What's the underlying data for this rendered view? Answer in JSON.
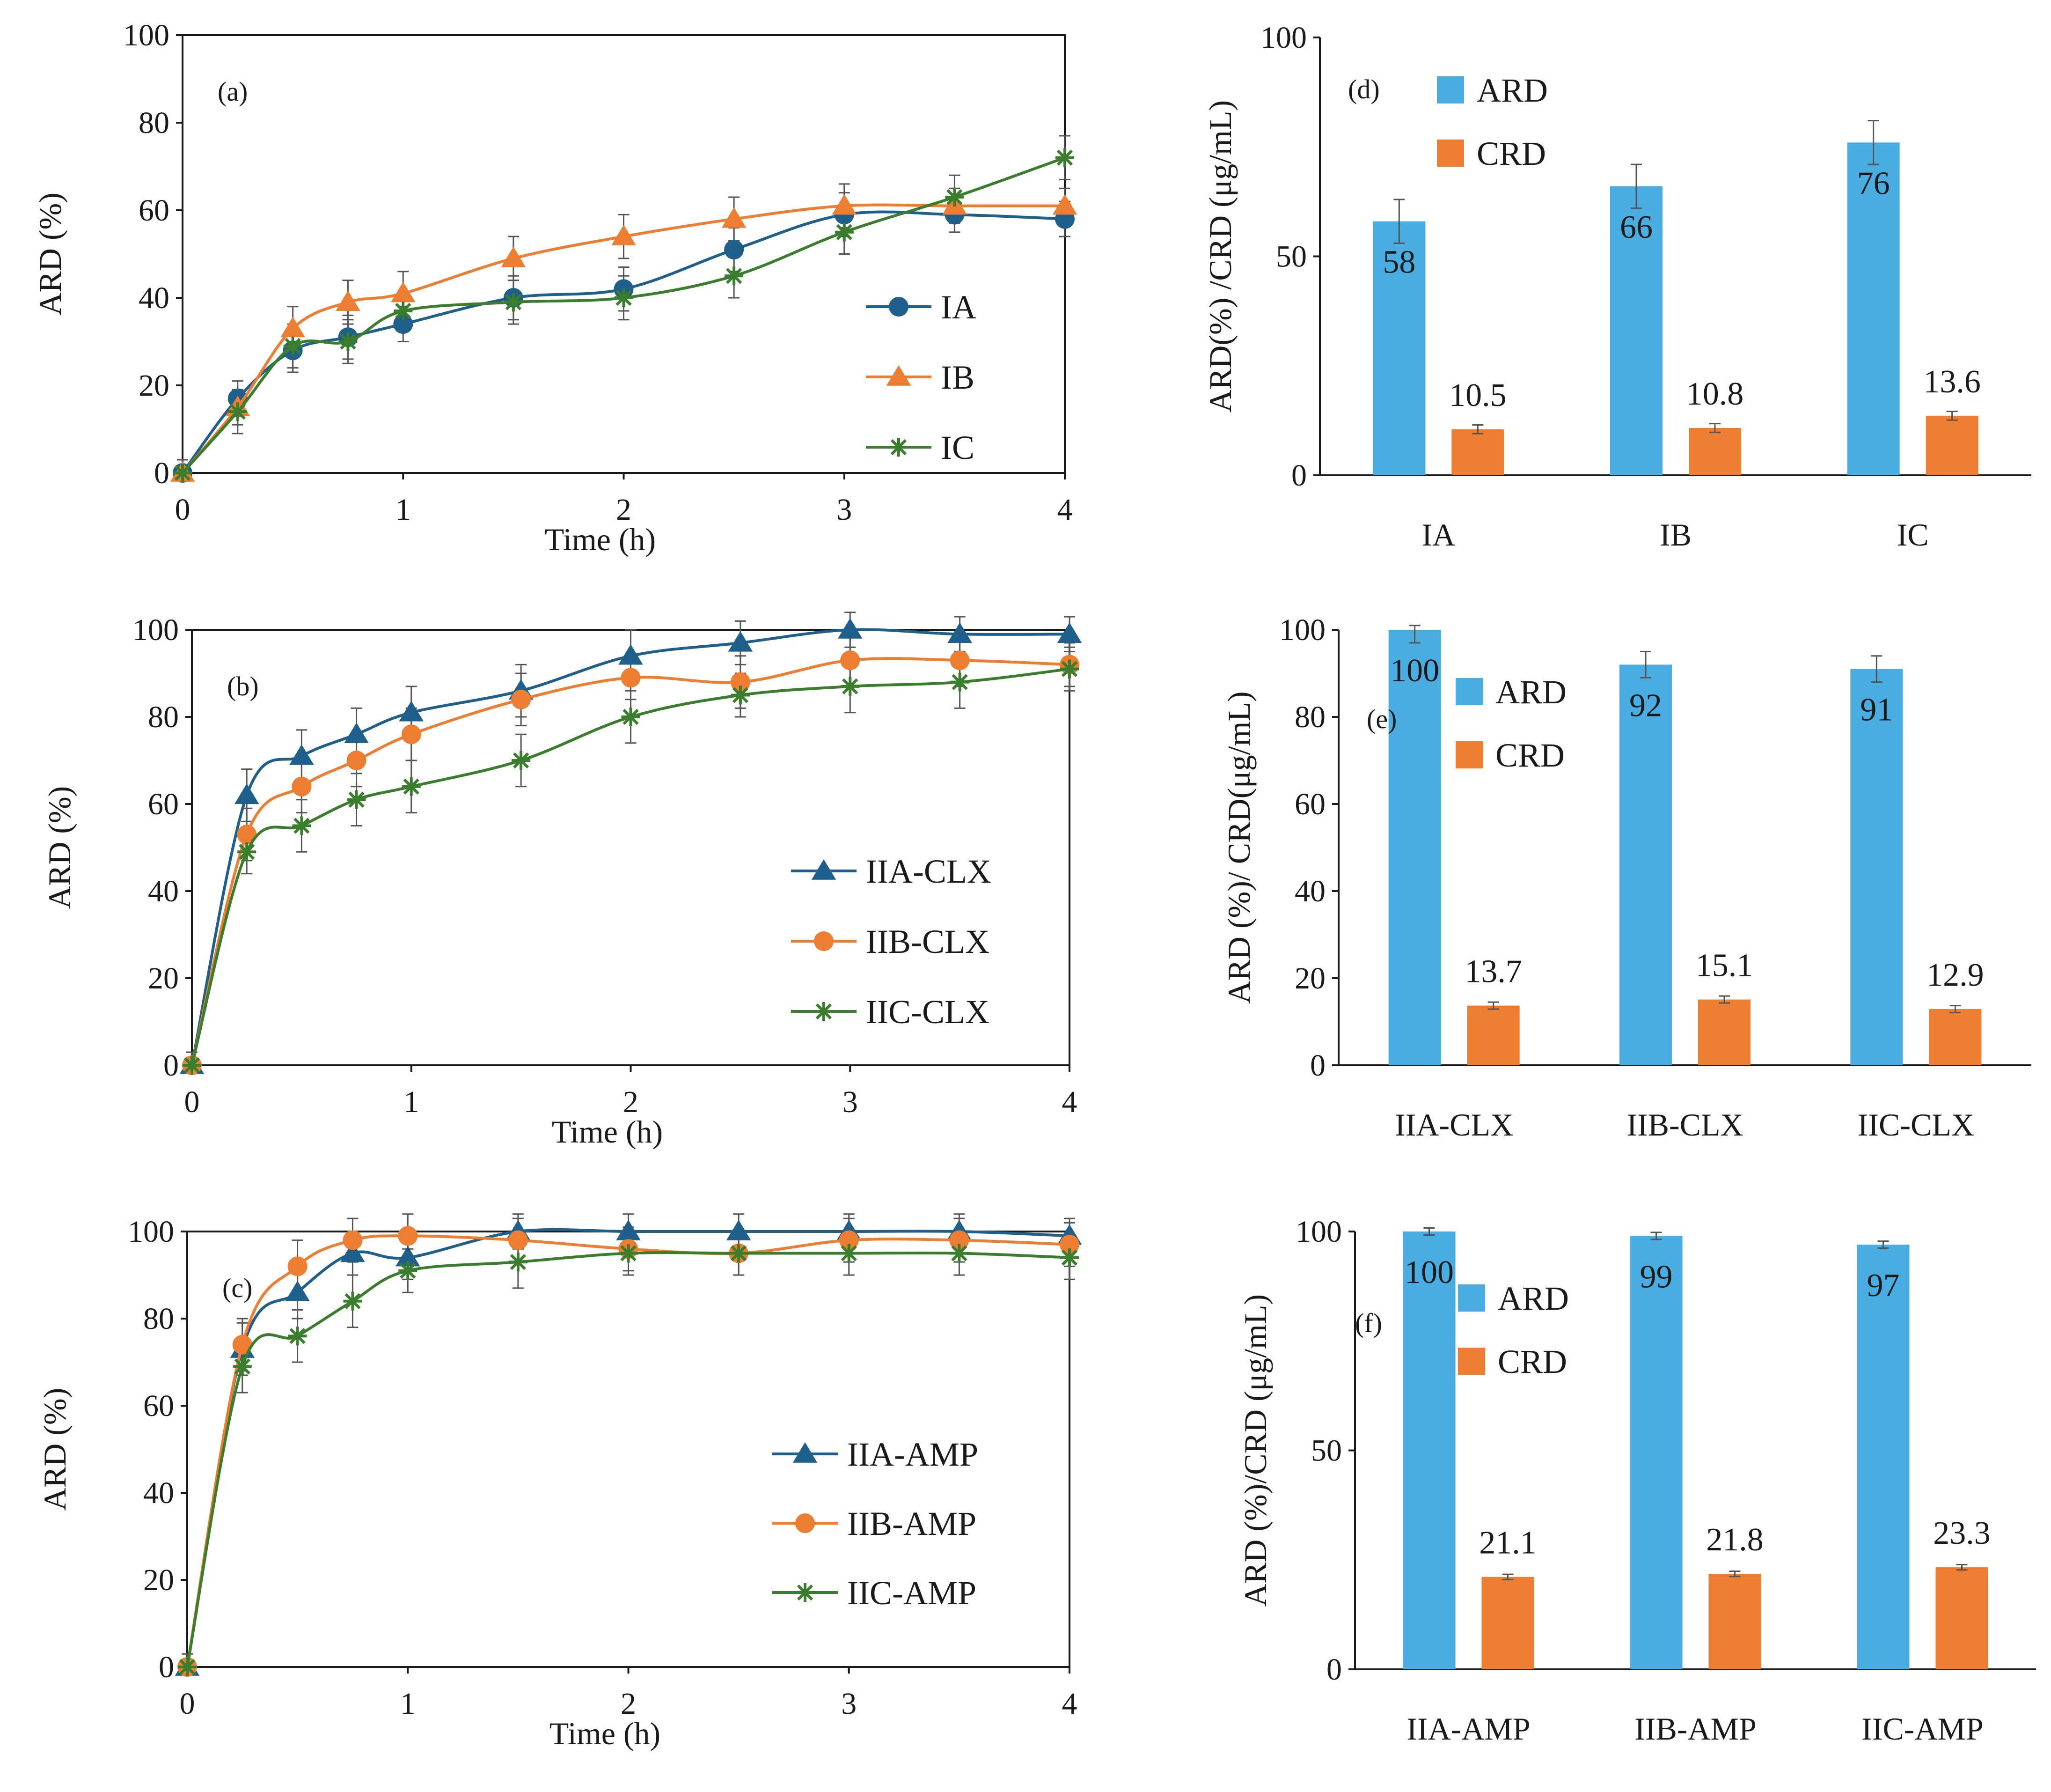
{
  "colors": {
    "blue": "#1f5f8b",
    "orange": "#ed7d31",
    "green": "#3a7d2c",
    "bar_ard": "#49ade2",
    "bar_crd": "#ed7d31",
    "axis": "#1a1a1a",
    "error_bar": "#555555"
  },
  "chart_data": [
    {
      "id": "a",
      "type": "line",
      "panel_label": "(a)",
      "xlabel": "Time (h)",
      "ylabel": "ARD (%)",
      "xlim": [
        0,
        4
      ],
      "ylim": [
        0,
        100
      ],
      "x_ticks": [
        0,
        1,
        2,
        3,
        4
      ],
      "y_ticks": [
        0,
        20,
        40,
        60,
        80,
        100
      ],
      "legend_position": "center-right",
      "x": [
        0,
        0.25,
        0.5,
        0.75,
        1,
        1.5,
        2,
        2.5,
        3,
        3.5,
        4
      ],
      "series": [
        {
          "name": "IA",
          "marker": "circle",
          "color_key": "blue",
          "values": [
            0,
            17,
            28,
            31,
            34,
            40,
            42,
            51,
            59,
            59,
            58
          ],
          "errors": [
            3,
            4,
            5,
            5,
            4,
            5,
            5,
            5,
            5,
            4,
            4
          ]
        },
        {
          "name": "IB",
          "marker": "triangle",
          "color_key": "orange",
          "values": [
            0,
            15,
            33,
            39,
            41,
            49,
            54,
            58,
            61,
            61,
            61
          ],
          "errors": [
            3,
            4,
            5,
            5,
            5,
            5,
            5,
            5,
            5,
            4,
            4
          ]
        },
        {
          "name": "IC",
          "marker": "star",
          "color_key": "green",
          "values": [
            0,
            14,
            29,
            30,
            37,
            39,
            40,
            45,
            55,
            63,
            72
          ],
          "errors": [
            3,
            5,
            5,
            5,
            4,
            5,
            5,
            5,
            5,
            5,
            5
          ]
        }
      ]
    },
    {
      "id": "b",
      "type": "line",
      "panel_label": "(b)",
      "xlabel": "Time (h)",
      "ylabel": "ARD (%)",
      "xlim": [
        0,
        4
      ],
      "ylim": [
        0,
        100
      ],
      "x_ticks": [
        0,
        1,
        2,
        3,
        4
      ],
      "y_ticks": [
        0,
        20,
        40,
        60,
        80,
        100
      ],
      "legend_position": "bottom-right",
      "x": [
        0,
        0.25,
        0.5,
        0.75,
        1,
        1.5,
        2,
        2.5,
        3,
        3.5,
        4
      ],
      "series": [
        {
          "name": "IIA-CLX",
          "marker": "triangle",
          "color_key": "blue",
          "values": [
            0,
            62,
            71,
            76,
            81,
            86,
            94,
            97,
            100,
            99,
            99
          ],
          "errors": [
            3,
            6,
            6,
            6,
            6,
            6,
            6,
            5,
            4,
            4,
            4
          ]
        },
        {
          "name": "IIB-CLX",
          "marker": "circle",
          "color_key": "orange",
          "values": [
            0,
            53,
            64,
            70,
            76,
            84,
            89,
            88,
            93,
            93,
            92
          ],
          "errors": [
            3,
            6,
            6,
            6,
            6,
            6,
            5,
            6,
            6,
            6,
            5
          ]
        },
        {
          "name": "IIC-CLX",
          "marker": "star",
          "color_key": "green",
          "values": [
            0,
            49,
            55,
            61,
            64,
            70,
            80,
            85,
            87,
            88,
            91
          ],
          "errors": [
            3,
            5,
            6,
            6,
            6,
            6,
            6,
            5,
            6,
            6,
            5
          ]
        }
      ]
    },
    {
      "id": "c",
      "type": "line",
      "panel_label": "(c)",
      "xlabel": "Time (h)",
      "ylabel": "ARD (%)",
      "xlim": [
        0,
        4
      ],
      "ylim": [
        0,
        100
      ],
      "x_ticks": [
        0,
        1,
        2,
        3,
        4
      ],
      "y_ticks": [
        0,
        20,
        40,
        60,
        80,
        100
      ],
      "legend_position": "bottom-right",
      "x": [
        0,
        0.25,
        0.5,
        0.75,
        1,
        1.5,
        2,
        2.5,
        3,
        3.5,
        4
      ],
      "series": [
        {
          "name": "IIA-AMP",
          "marker": "triangle",
          "color_key": "blue",
          "values": [
            0,
            73,
            86,
            95,
            94,
            100,
            100,
            100,
            100,
            100,
            99
          ],
          "errors": [
            3,
            6,
            6,
            5,
            5,
            4,
            4,
            4,
            4,
            4,
            4
          ]
        },
        {
          "name": "IIB-AMP",
          "marker": "circle",
          "color_key": "orange",
          "values": [
            0,
            74,
            92,
            98,
            99,
            98,
            96,
            95,
            98,
            98,
            97
          ],
          "errors": [
            3,
            6,
            6,
            5,
            5,
            5,
            5,
            5,
            5,
            5,
            5
          ]
        },
        {
          "name": "IIC-AMP",
          "marker": "star",
          "color_key": "green",
          "values": [
            0,
            69,
            76,
            84,
            91,
            93,
            95,
            95,
            95,
            95,
            94
          ],
          "errors": [
            3,
            6,
            6,
            6,
            5,
            6,
            5,
            5,
            5,
            5,
            5
          ]
        }
      ]
    },
    {
      "id": "d",
      "type": "bar",
      "panel_label": "(d)",
      "ylabel": "ARD(%) /CRD (μg/mL)",
      "ylim": [
        0,
        100
      ],
      "y_ticks": [
        0,
        50,
        100
      ],
      "legend_position": "top-left",
      "categories": [
        "IA",
        "IB",
        "IC"
      ],
      "series": [
        {
          "name": "ARD",
          "color_key": "bar_ard",
          "values": [
            58,
            66,
            76
          ],
          "labels": [
            "58",
            "66",
            "76"
          ],
          "errors": [
            5,
            5,
            5
          ]
        },
        {
          "name": "CRD",
          "color_key": "bar_crd",
          "values": [
            10.5,
            10.8,
            13.6
          ],
          "labels": [
            "10.5",
            "10.8",
            "13.6"
          ],
          "errors": [
            1,
            1,
            1
          ]
        }
      ]
    },
    {
      "id": "e",
      "type": "bar",
      "panel_label": "(e)",
      "ylabel": "ARD (%)/ CRD(μg/mL)",
      "ylim": [
        0,
        100
      ],
      "y_ticks": [
        0,
        20,
        40,
        60,
        80,
        100
      ],
      "legend_position": "top-left",
      "categories": [
        "IIA-CLX",
        "IIB-CLX",
        "IIC-CLX"
      ],
      "series": [
        {
          "name": "ARD",
          "color_key": "bar_ard",
          "values": [
            100,
            92,
            91
          ],
          "labels": [
            "100",
            "92",
            "91"
          ],
          "errors": [
            3,
            3,
            3
          ]
        },
        {
          "name": "CRD",
          "color_key": "bar_crd",
          "values": [
            13.7,
            15.1,
            12.9
          ],
          "labels": [
            "13.7",
            "15.1",
            "12.9"
          ],
          "errors": [
            0.8,
            0.8,
            0.8
          ]
        }
      ]
    },
    {
      "id": "f",
      "type": "bar",
      "panel_label": "(f)",
      "ylabel": "ARD (%)/CRD (μg/mL)",
      "ylim": [
        0,
        100
      ],
      "y_ticks": [
        0,
        50,
        100
      ],
      "legend_position": "top-left",
      "categories": [
        "IIA-AMP",
        "IIB-AMP",
        "IIC-AMP"
      ],
      "series": [
        {
          "name": "ARD",
          "color_key": "bar_ard",
          "values": [
            100,
            99,
            97
          ],
          "labels": [
            "100",
            "99",
            "97"
          ],
          "errors": [
            0.8,
            0.8,
            0.8
          ]
        },
        {
          "name": "CRD",
          "color_key": "bar_crd",
          "values": [
            21.1,
            21.8,
            23.3
          ],
          "labels": [
            "21.1",
            "21.8",
            "23.3"
          ],
          "errors": [
            0.6,
            0.6,
            0.6
          ]
        }
      ]
    }
  ]
}
